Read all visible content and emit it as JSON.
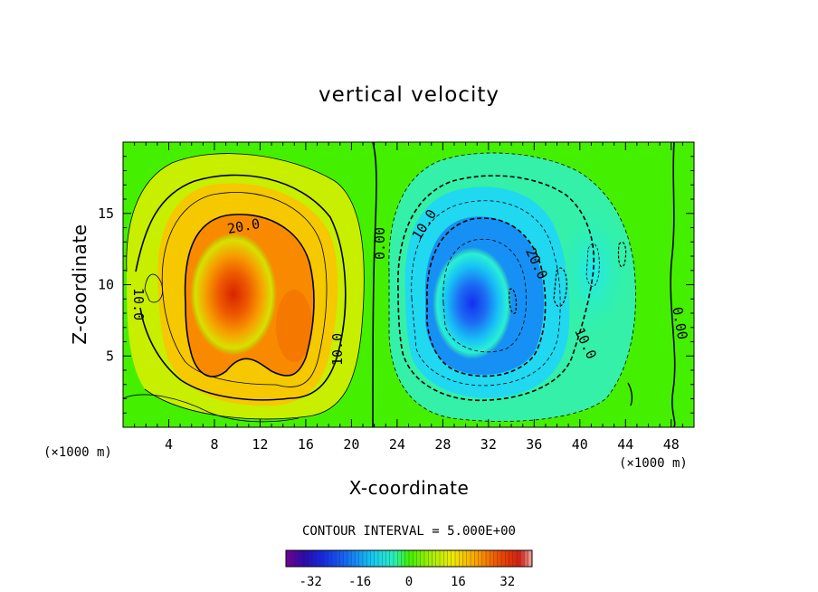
{
  "chart_data": {
    "type": "heatmap",
    "title": "vertical velocity",
    "xlabel": "X-coordinate",
    "ylabel": "Z-coordinate",
    "x_unit_left": "(×1000 m)",
    "x_unit_right": "(×1000 m)",
    "xlim": [
      0,
      50
    ],
    "ylim": [
      0,
      20
    ],
    "x_ticks": [
      4,
      8,
      12,
      16,
      20,
      24,
      28,
      32,
      36,
      40,
      44,
      48
    ],
    "y_ticks": [
      5,
      10,
      15
    ],
    "contour_interval_text": "CONTOUR INTERVAL = 5.000E+00",
    "contour_labels": [
      "20.0",
      "10.0",
      "10.0",
      "0.00",
      "10.0",
      "20.0",
      "10.0",
      "0.00"
    ],
    "colorbar": {
      "range": [
        -40,
        40
      ],
      "ticks": [
        "-32",
        "-16",
        "0",
        "16",
        "32"
      ],
      "tick_values": [
        -32,
        -16,
        0,
        16,
        32
      ]
    },
    "features": {
      "updraft": {
        "x_center": 9.5,
        "z_center": 9,
        "max_value": 30
      },
      "downdraft": {
        "x_center": 30.5,
        "z_center": 8.5,
        "min_value": -30
      },
      "zero_contours_x": [
        22,
        48.5
      ]
    },
    "colors": {
      "positive_max": "#d42a00",
      "zero": "#3cf000",
      "negative_max": "#0f32f0"
    }
  }
}
